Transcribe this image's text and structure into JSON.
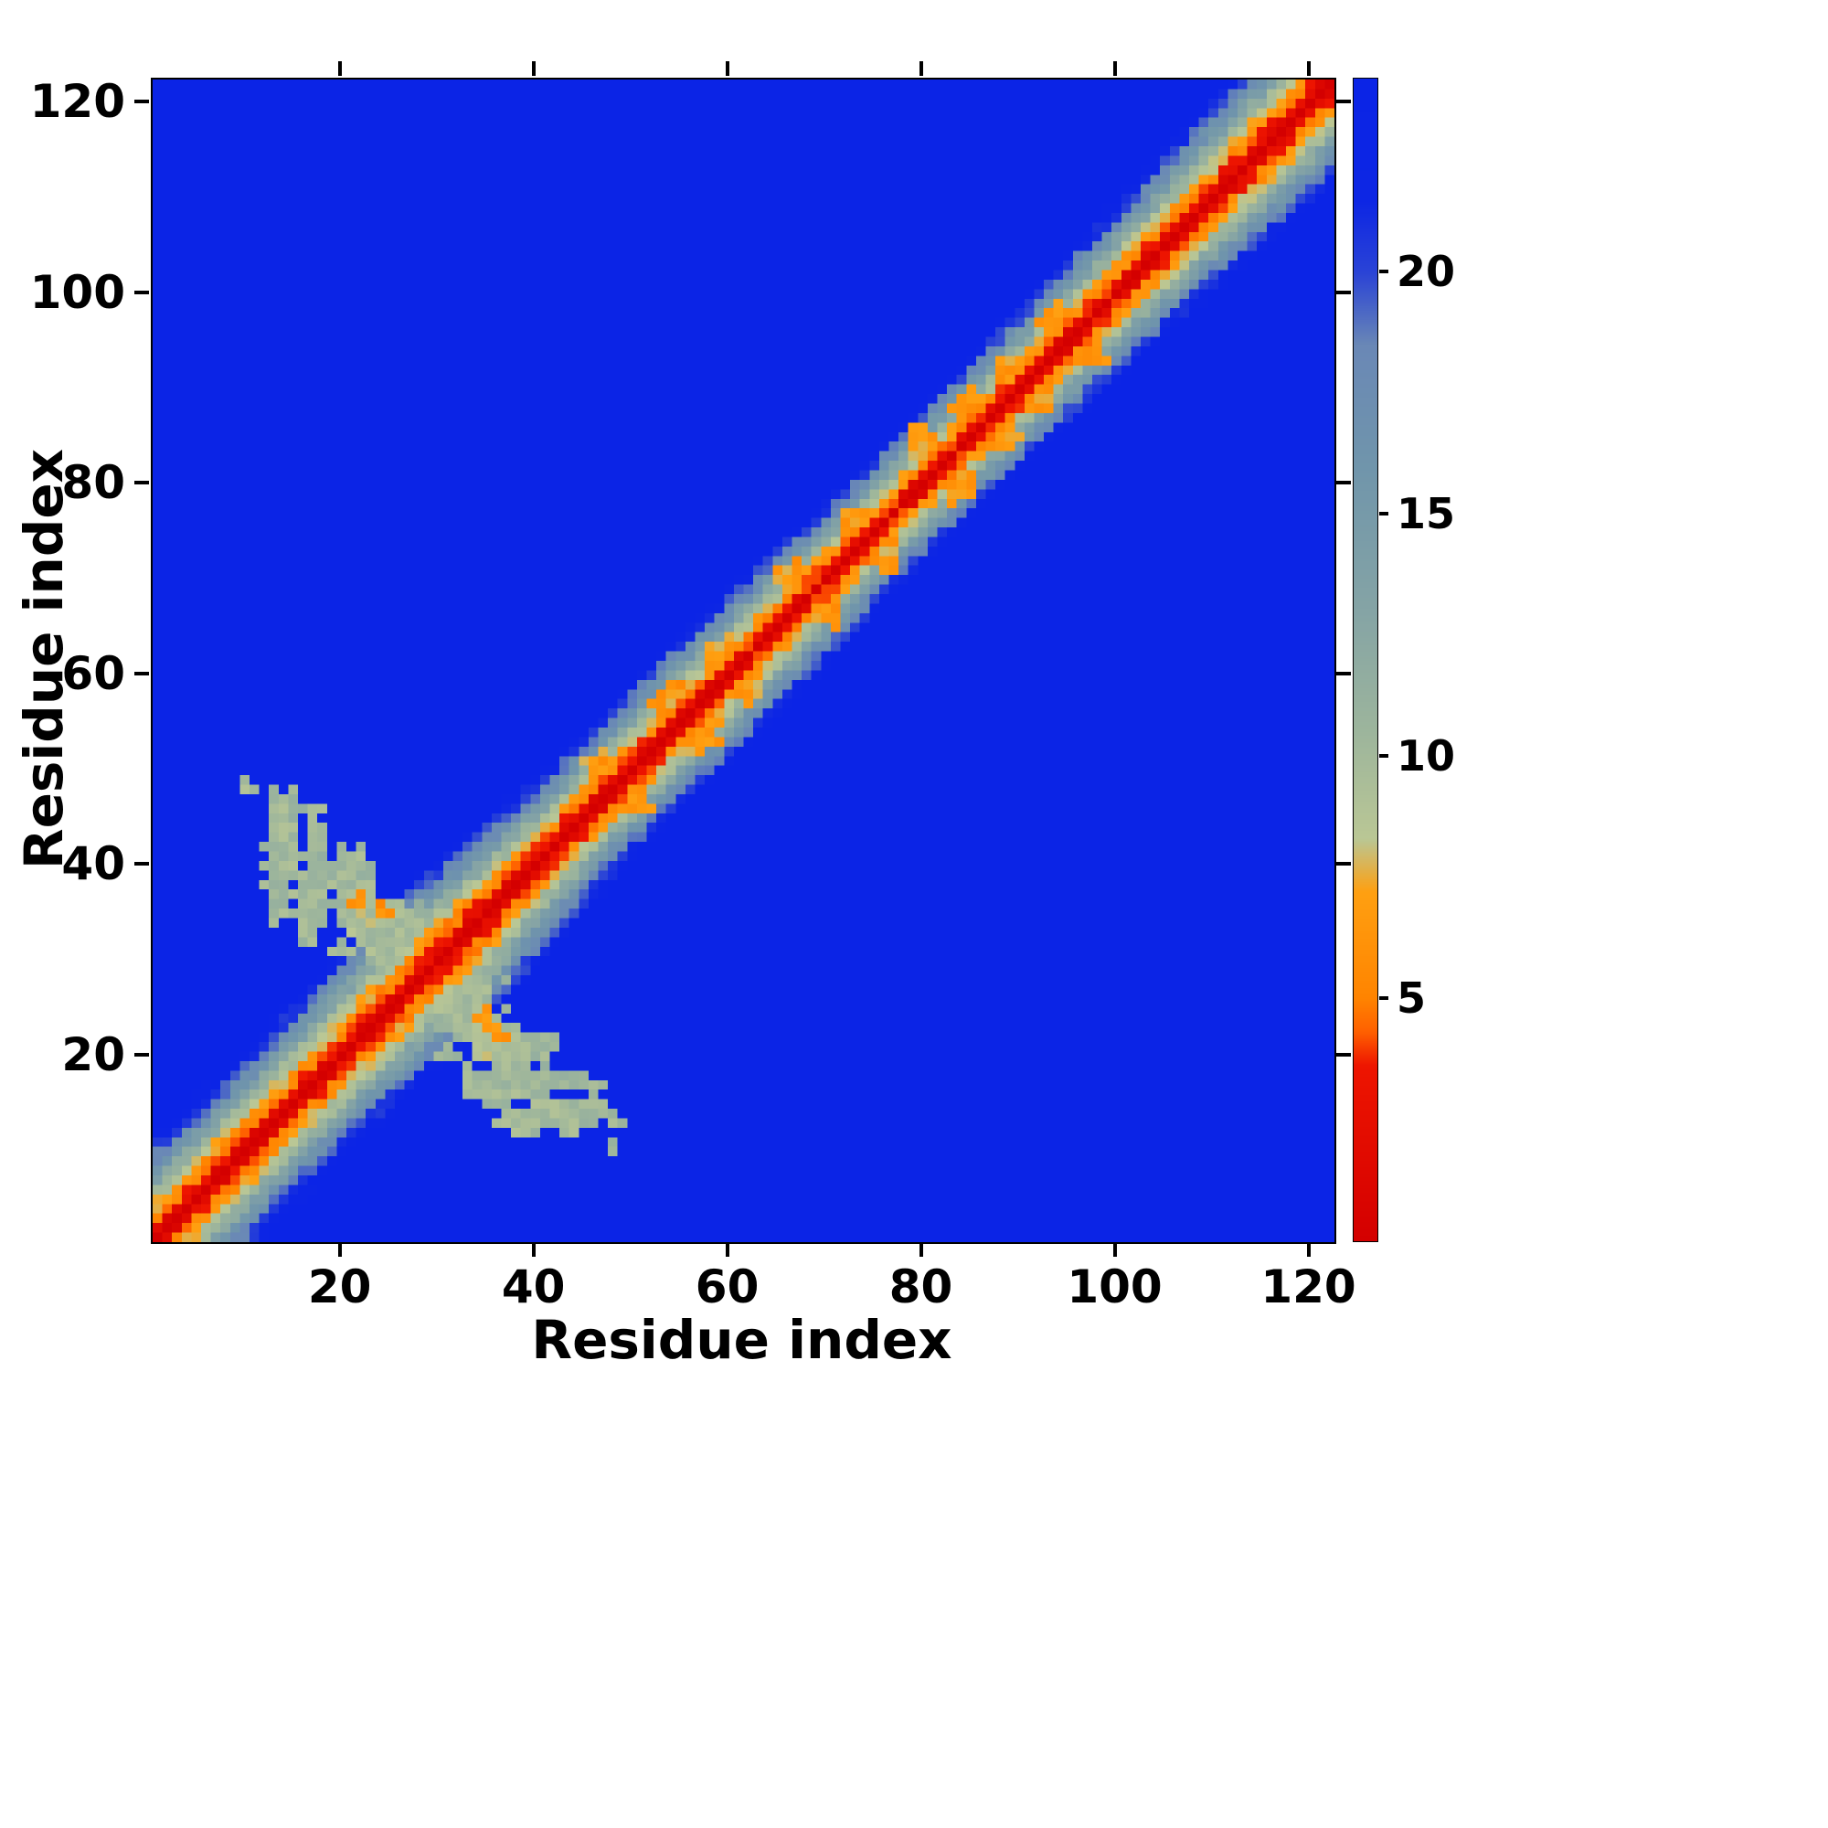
{
  "chart_data": {
    "type": "heatmap",
    "title": "",
    "xlabel": "Residue index",
    "ylabel": "Residue index",
    "n_residues": 122,
    "x_range": [
      1,
      122
    ],
    "y_range": [
      1,
      122
    ],
    "x_ticks": [
      20,
      40,
      60,
      80,
      100,
      120
    ],
    "y_ticks": [
      20,
      40,
      60,
      80,
      100,
      120
    ],
    "value_range": [
      0,
      24
    ],
    "colorbar": {
      "position": "right",
      "ticks": [
        5,
        10,
        15,
        20
      ],
      "low_color": "#d40000",
      "high_color": "#0b24e6"
    },
    "colormap_stops": [
      [
        0.0,
        "#d40000"
      ],
      [
        3.6,
        "#ee1500"
      ],
      [
        4.3,
        "#ff6000"
      ],
      [
        5.0,
        "#ff8400"
      ],
      [
        7.2,
        "#ffa011"
      ],
      [
        8.3,
        "#bac795"
      ],
      [
        10.5,
        "#9db59c"
      ],
      [
        13.0,
        "#85a4a5"
      ],
      [
        16.0,
        "#7095ab"
      ],
      [
        18.5,
        "#6a88b6"
      ],
      [
        20.0,
        "#2b44d6"
      ],
      [
        21.5,
        "#0d26e4"
      ],
      [
        24.0,
        "#0b24e6"
      ]
    ],
    "matrix_model": {
      "description": "Residue-residue distance map: value grows with sequence separation |i-j| along a red/orange/green banded diagonal, clipped to blue background; off-diagonal contact patches near residues 10-50.",
      "slope": 2.7,
      "noise_amplitude": 1.6,
      "width_profile": [
        [
          1,
          1.28
        ],
        [
          15,
          1.2
        ],
        [
          30,
          1.35
        ],
        [
          45,
          1.05
        ],
        [
          60,
          1.08
        ],
        [
          75,
          0.95
        ],
        [
          90,
          1.0
        ],
        [
          105,
          1.12
        ],
        [
          122,
          1.3
        ]
      ],
      "contact_patches": [
        [
          13.5,
          41,
          1.6,
          7,
          10
        ],
        [
          10,
          48,
          0.9,
          0.9,
          9.8
        ],
        [
          13,
          48,
          0.9,
          0.9,
          10
        ],
        [
          17,
          36,
          2.2,
          4,
          10
        ],
        [
          21,
          38,
          2.5,
          4.5,
          10.2
        ],
        [
          22,
          36,
          1,
          1,
          6.2
        ],
        [
          25,
          33,
          3.5,
          3.5,
          9.8
        ],
        [
          24,
          35,
          1,
          1,
          6.2
        ],
        [
          30,
          30,
          6.5,
          6.5,
          11
        ],
        [
          33,
          24,
          3.5,
          2.5,
          10
        ],
        [
          37,
          21,
          3,
          2,
          10.2
        ],
        [
          41,
          17.5,
          4,
          1.4,
          10.4
        ],
        [
          44,
          14.5,
          4,
          1.1,
          10.4
        ],
        [
          48,
          10,
          1,
          1,
          10
        ],
        [
          46,
          17,
          1.2,
          1,
          10.3
        ],
        [
          35,
          22,
          2,
          2,
          9.2
        ],
        [
          31,
          20,
          1.2,
          1.2,
          10
        ],
        [
          50,
          47,
          2,
          2,
          6.6
        ],
        [
          57,
          54,
          2.4,
          2,
          6.6
        ],
        [
          62,
          59,
          2,
          2,
          6.8
        ],
        [
          70,
          67,
          2,
          2,
          6.6
        ],
        [
          76,
          73,
          2,
          2,
          6.8
        ],
        [
          84,
          80,
          2,
          2,
          6.9
        ],
        [
          88,
          85,
          2,
          2,
          6.6
        ],
        [
          92,
          89,
          1.6,
          1.6,
          6.6
        ],
        [
          97,
          94,
          2,
          2,
          6.8
        ]
      ]
    }
  }
}
